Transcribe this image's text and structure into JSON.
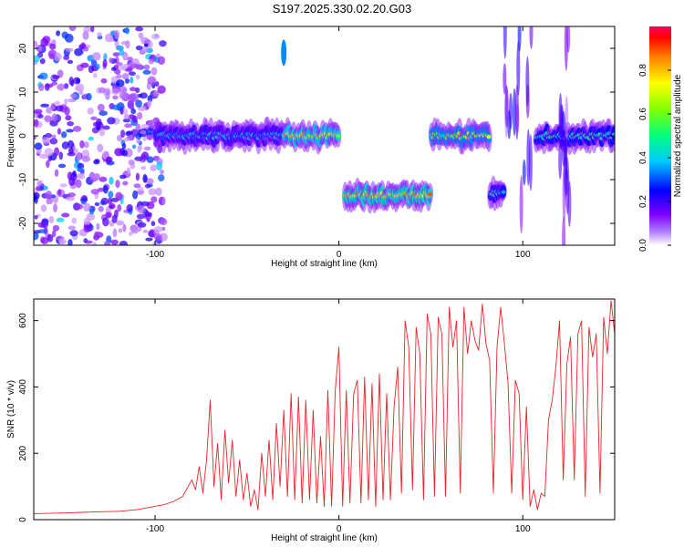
{
  "figure": {
    "title": "S197.2025.330.02.20.G03"
  },
  "chart_data": [
    {
      "type": "heatmap",
      "title": "S197.2025.330.02.20.G03",
      "xlabel": "Height of straight line (km)",
      "ylabel": "Frequency (Hz)",
      "xlim": [
        -166,
        150
      ],
      "ylim": [
        -25,
        25
      ],
      "x_ticks": [
        -100,
        0,
        100
      ],
      "y_ticks": [
        -20,
        -10,
        0,
        10,
        20
      ],
      "colorbar": {
        "label": "Normalized spectral amplitude",
        "range": [
          0,
          1
        ],
        "ticks": [
          0.0,
          0.2,
          0.4,
          0.6,
          0.8
        ],
        "colormap": [
          "#ffffff",
          "#7f00ff",
          "#0000ff",
          "#00c8ff",
          "#00ff80",
          "#80ff00",
          "#ffff00",
          "#ff8000",
          "#ff0000",
          "#ff0060"
        ]
      },
      "features": [
        {
          "kind": "noise",
          "x_range": [
            -166,
            -95
          ],
          "freq_range": [
            -25,
            25
          ],
          "level": 0.15
        },
        {
          "kind": "band",
          "x_range": [
            -100,
            -30
          ],
          "freq": 0,
          "level": 0.35
        },
        {
          "kind": "band",
          "x_range": [
            -30,
            0
          ],
          "freq": 0,
          "level": 0.7
        },
        {
          "kind": "band",
          "x_range": [
            3,
            50
          ],
          "freq": -13.5,
          "level": 0.75
        },
        {
          "kind": "band",
          "x_range": [
            50,
            82
          ],
          "freq": 0,
          "level": 0.6
        },
        {
          "kind": "band",
          "x_range": [
            82,
            90
          ],
          "freq": -13,
          "level": 0.4
        },
        {
          "kind": "band",
          "x_range": [
            107,
            150
          ],
          "freq": 0,
          "level": 0.45
        },
        {
          "kind": "spike",
          "x": -30,
          "freq_range": [
            16,
            22
          ],
          "level": 0.3
        },
        {
          "kind": "streak",
          "x_range": [
            90,
            105
          ],
          "freq_range": [
            -25,
            25
          ],
          "level": 0.2
        },
        {
          "kind": "streak",
          "x_range": [
            120,
            126
          ],
          "freq_range": [
            -25,
            25
          ],
          "level": 0.15
        }
      ]
    },
    {
      "type": "line",
      "xlabel": "Height of straight line (km)",
      "ylabel": "SNR (10 * v/v)",
      "xlim": [
        -166,
        150
      ],
      "ylim": [
        0,
        665
      ],
      "x_ticks": [
        -100,
        0,
        100
      ],
      "y_ticks": [
        0,
        200,
        400,
        600
      ],
      "color": "#e8232a",
      "series": [
        {
          "x": [
            -166,
            -150,
            -140,
            -130,
            -120,
            -110,
            -100,
            -95,
            -90,
            -85,
            -80,
            -78,
            -76,
            -74,
            -72,
            -70,
            -68,
            -66,
            -64,
            -62,
            -60,
            -58,
            -56,
            -54,
            -52,
            -50,
            -48,
            -46,
            -44,
            -42,
            -40,
            -38,
            -36,
            -34,
            -32,
            -30,
            -28,
            -26,
            -24,
            -22,
            -20,
            -18,
            -16,
            -14,
            -12,
            -10,
            -8,
            -6,
            -4,
            -2,
            0,
            2,
            4,
            6,
            8,
            10,
            12,
            14,
            16,
            18,
            20,
            22,
            24,
            26,
            28,
            30,
            32,
            34,
            36,
            38,
            40,
            42,
            44,
            46,
            48,
            50,
            52,
            54,
            56,
            58,
            60,
            62,
            64,
            66,
            68,
            70,
            72,
            74,
            76,
            78,
            80,
            82,
            84,
            86,
            88,
            90,
            92,
            94,
            96,
            98,
            100,
            102,
            104,
            106,
            108,
            110,
            112,
            114,
            116,
            118,
            120,
            122,
            124,
            126,
            128,
            130,
            132,
            134,
            136,
            138,
            140,
            142,
            144,
            146,
            148,
            150
          ],
          "y": [
            18,
            20,
            22,
            24,
            25,
            30,
            40,
            45,
            55,
            70,
            120,
            90,
            160,
            80,
            180,
            360,
            100,
            230,
            60,
            270,
            110,
            240,
            70,
            180,
            60,
            140,
            40,
            90,
            30,
            200,
            70,
            240,
            60,
            290,
            100,
            330,
            70,
            380,
            60,
            370,
            50,
            360,
            60,
            330,
            50,
            250,
            40,
            390,
            40,
            390,
            520,
            40,
            390,
            50,
            380,
            420,
            50,
            430,
            60,
            410,
            40,
            440,
            60,
            380,
            60,
            340,
            460,
            80,
            600,
            520,
            90,
            580,
            500,
            60,
            620,
            560,
            70,
            610,
            560,
            70,
            640,
            520,
            600,
            80,
            640,
            500,
            600,
            540,
            510,
            650,
            530,
            480,
            80,
            520,
            640,
            530,
            410,
            80,
            420,
            380,
            60,
            340,
            40,
            90,
            30,
            80,
            70,
            300,
            360,
            460,
            600,
            120,
            470,
            550,
            120,
            560,
            600,
            70,
            580,
            490,
            560,
            80,
            610,
            500,
            660,
            560
          ]
        }
      ]
    }
  ]
}
